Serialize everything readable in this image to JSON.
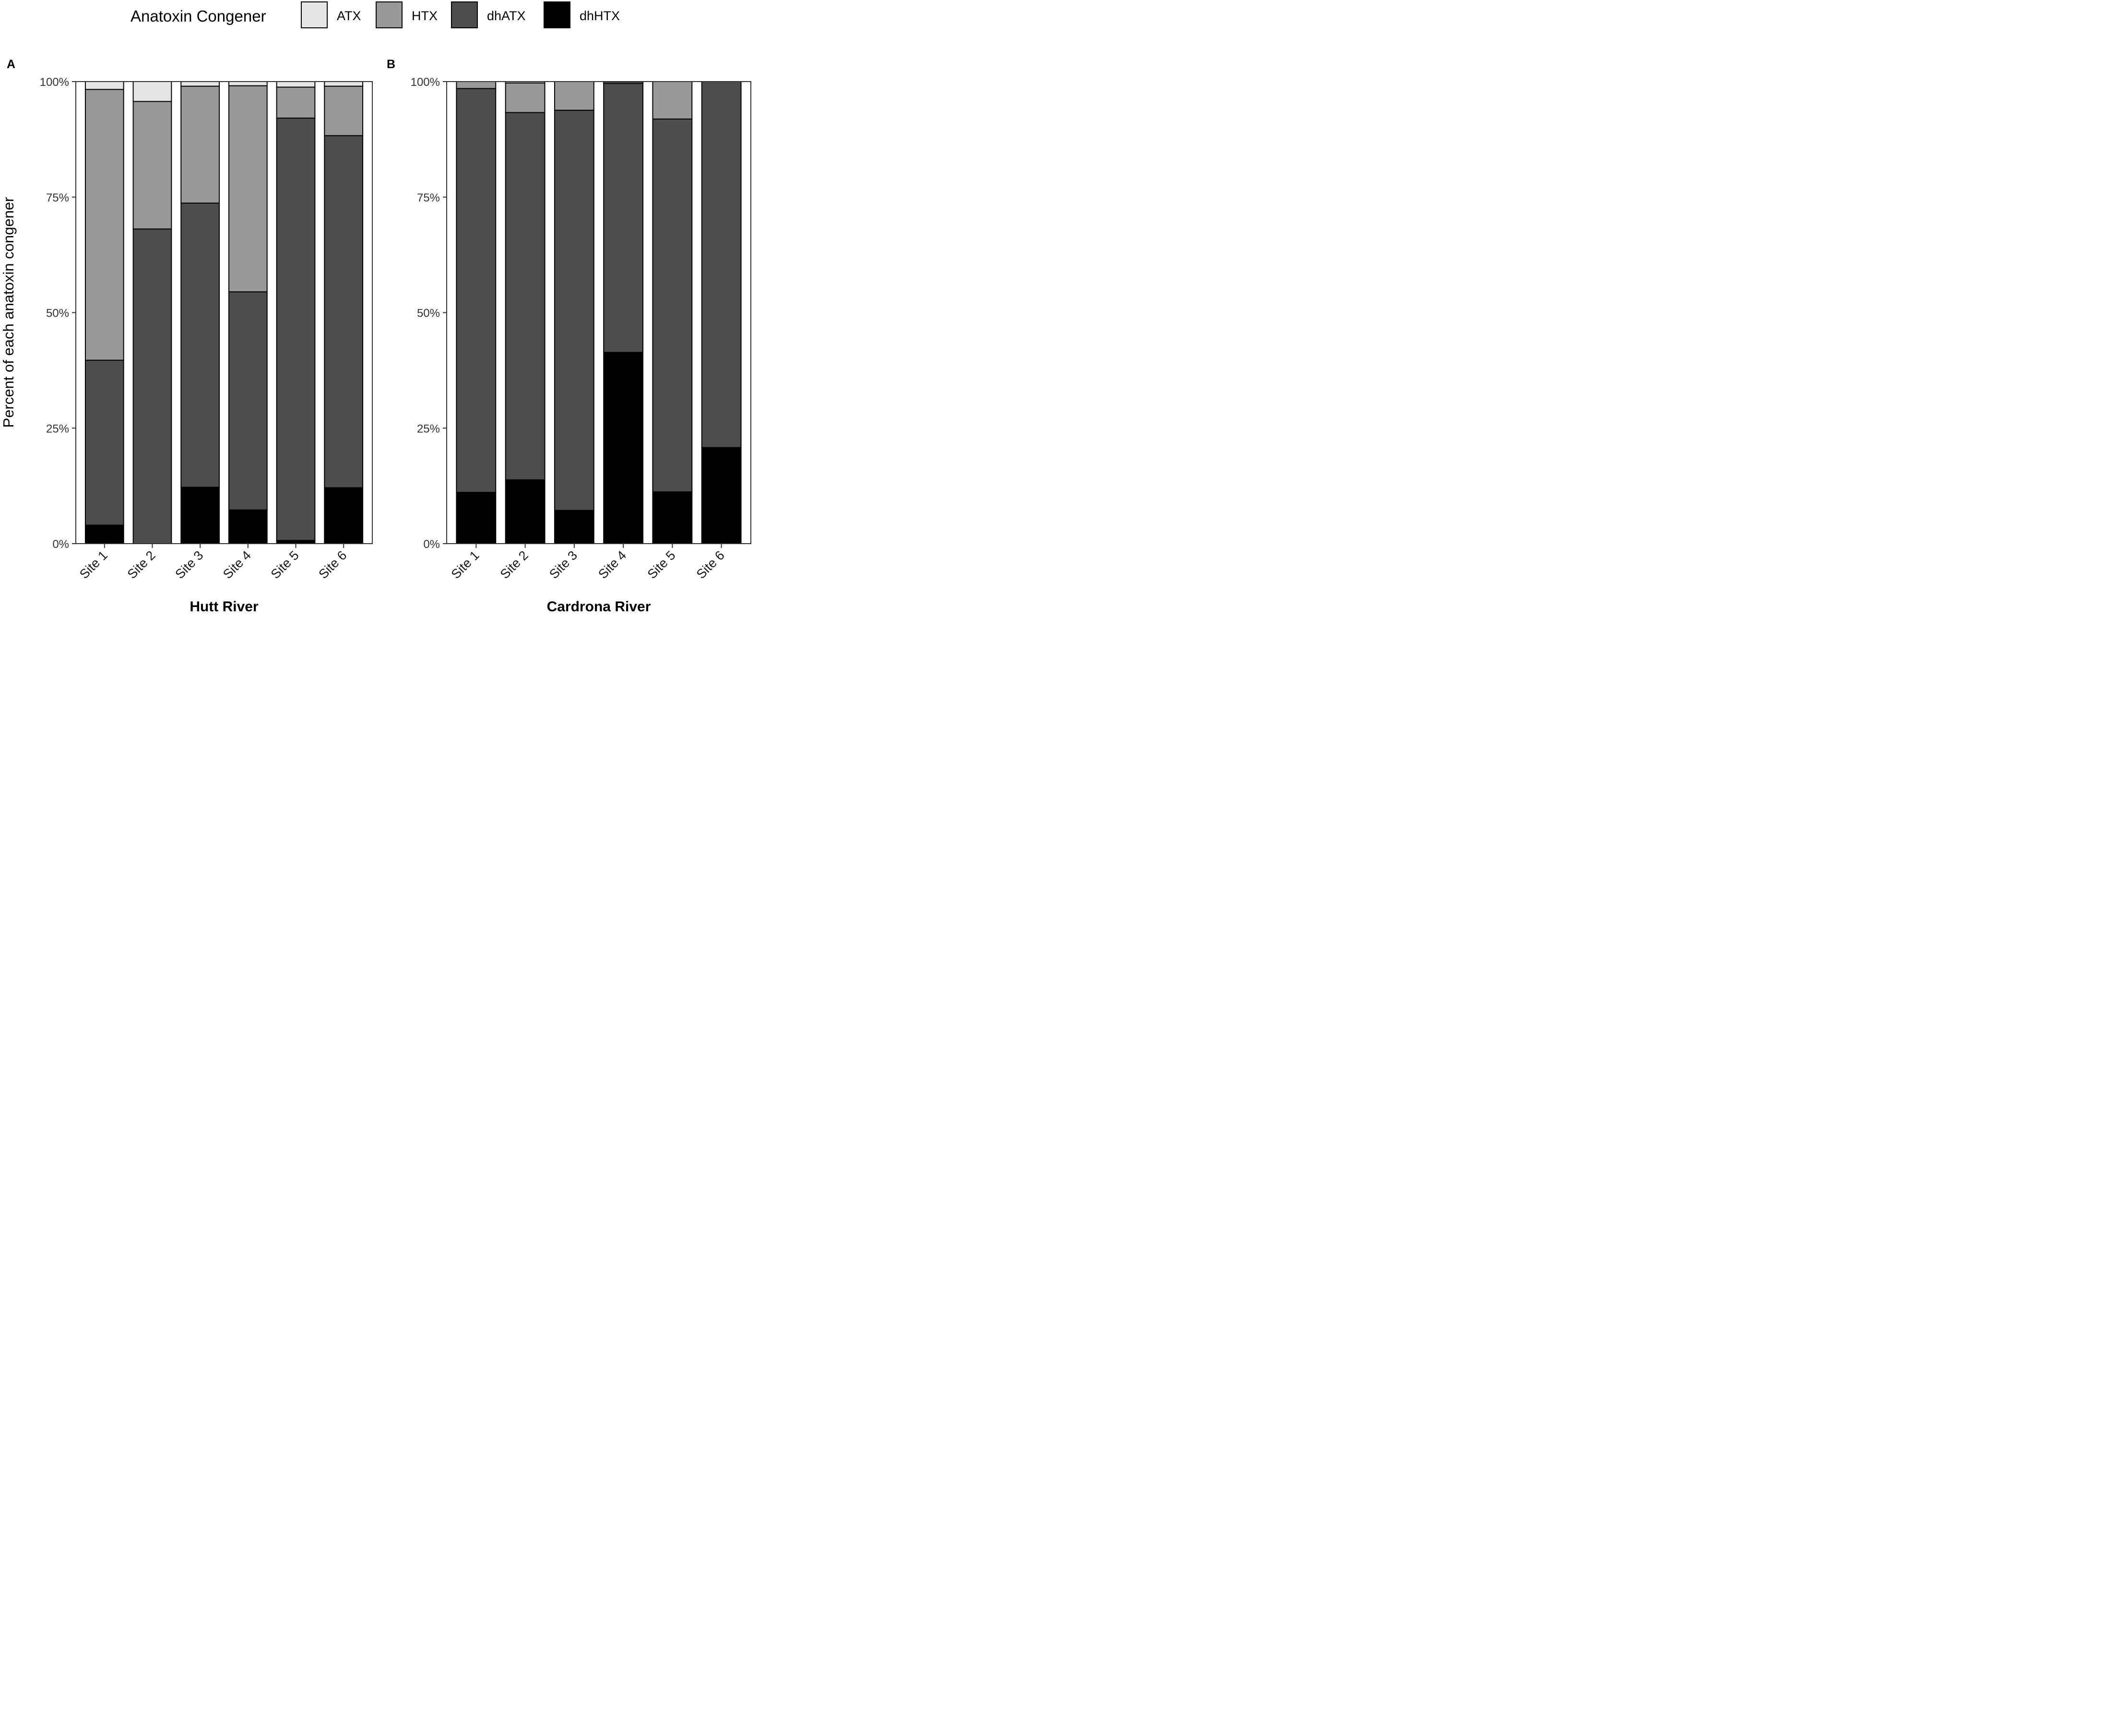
{
  "chart_data": {
    "type": "bar",
    "stacked": true,
    "percent_stacked": true,
    "legend": {
      "title": "Anatoxin Congener",
      "position": "top",
      "entries": [
        {
          "name": "ATX",
          "color": "#e6e6e6"
        },
        {
          "name": "HTX",
          "color": "#999999"
        },
        {
          "name": "dhATX",
          "color": "#4d4d4d"
        },
        {
          "name": "dhHTX",
          "color": "#000000"
        }
      ]
    },
    "ylabel": "Percent of each anatoxin congener",
    "ylim": [
      0,
      100
    ],
    "yticks": [
      0,
      25,
      50,
      75,
      100
    ],
    "ytick_labels": [
      "0%",
      "25%",
      "50%",
      "75%",
      "100%"
    ],
    "panels": [
      {
        "tag": "A",
        "xlabel": "Hutt River",
        "categories": [
          "Site 1",
          "Site 2",
          "Site 3",
          "Site 4",
          "Site 5",
          "Site 6"
        ],
        "series": [
          {
            "name": "dhHTX",
            "values": [
              4,
              0,
              12.2,
              7.3,
              0.7,
              12.1
            ]
          },
          {
            "name": "dhATX",
            "values": [
              35.7,
              68.1,
              61.5,
              47.2,
              91.4,
              76.2
            ]
          },
          {
            "name": "HTX",
            "values": [
              58.6,
              27.6,
              25.3,
              44.6,
              6.7,
              10.7
            ]
          },
          {
            "name": "ATX",
            "values": [
              1.7,
              4.3,
              1,
              0.9,
              1.2,
              1
            ]
          }
        ]
      },
      {
        "tag": "B",
        "xlabel": "Cardrona River",
        "categories": [
          "Site 1",
          "Site 2",
          "Site 3",
          "Site 4",
          "Site 5",
          "Site 6"
        ],
        "series": [
          {
            "name": "dhHTX",
            "values": [
              11.1,
              13.8,
              7.2,
              41.4,
              11.2,
              20.8
            ]
          },
          {
            "name": "dhATX",
            "values": [
              87.4,
              79.5,
              86.6,
              58.2,
              80.7,
              79.2
            ]
          },
          {
            "name": "HTX",
            "values": [
              1.5,
              6.4,
              6.2,
              0.3,
              8.1,
              0
            ]
          },
          {
            "name": "ATX",
            "values": [
              0,
              0.3,
              0,
              0.1,
              0,
              0
            ]
          }
        ]
      }
    ]
  }
}
